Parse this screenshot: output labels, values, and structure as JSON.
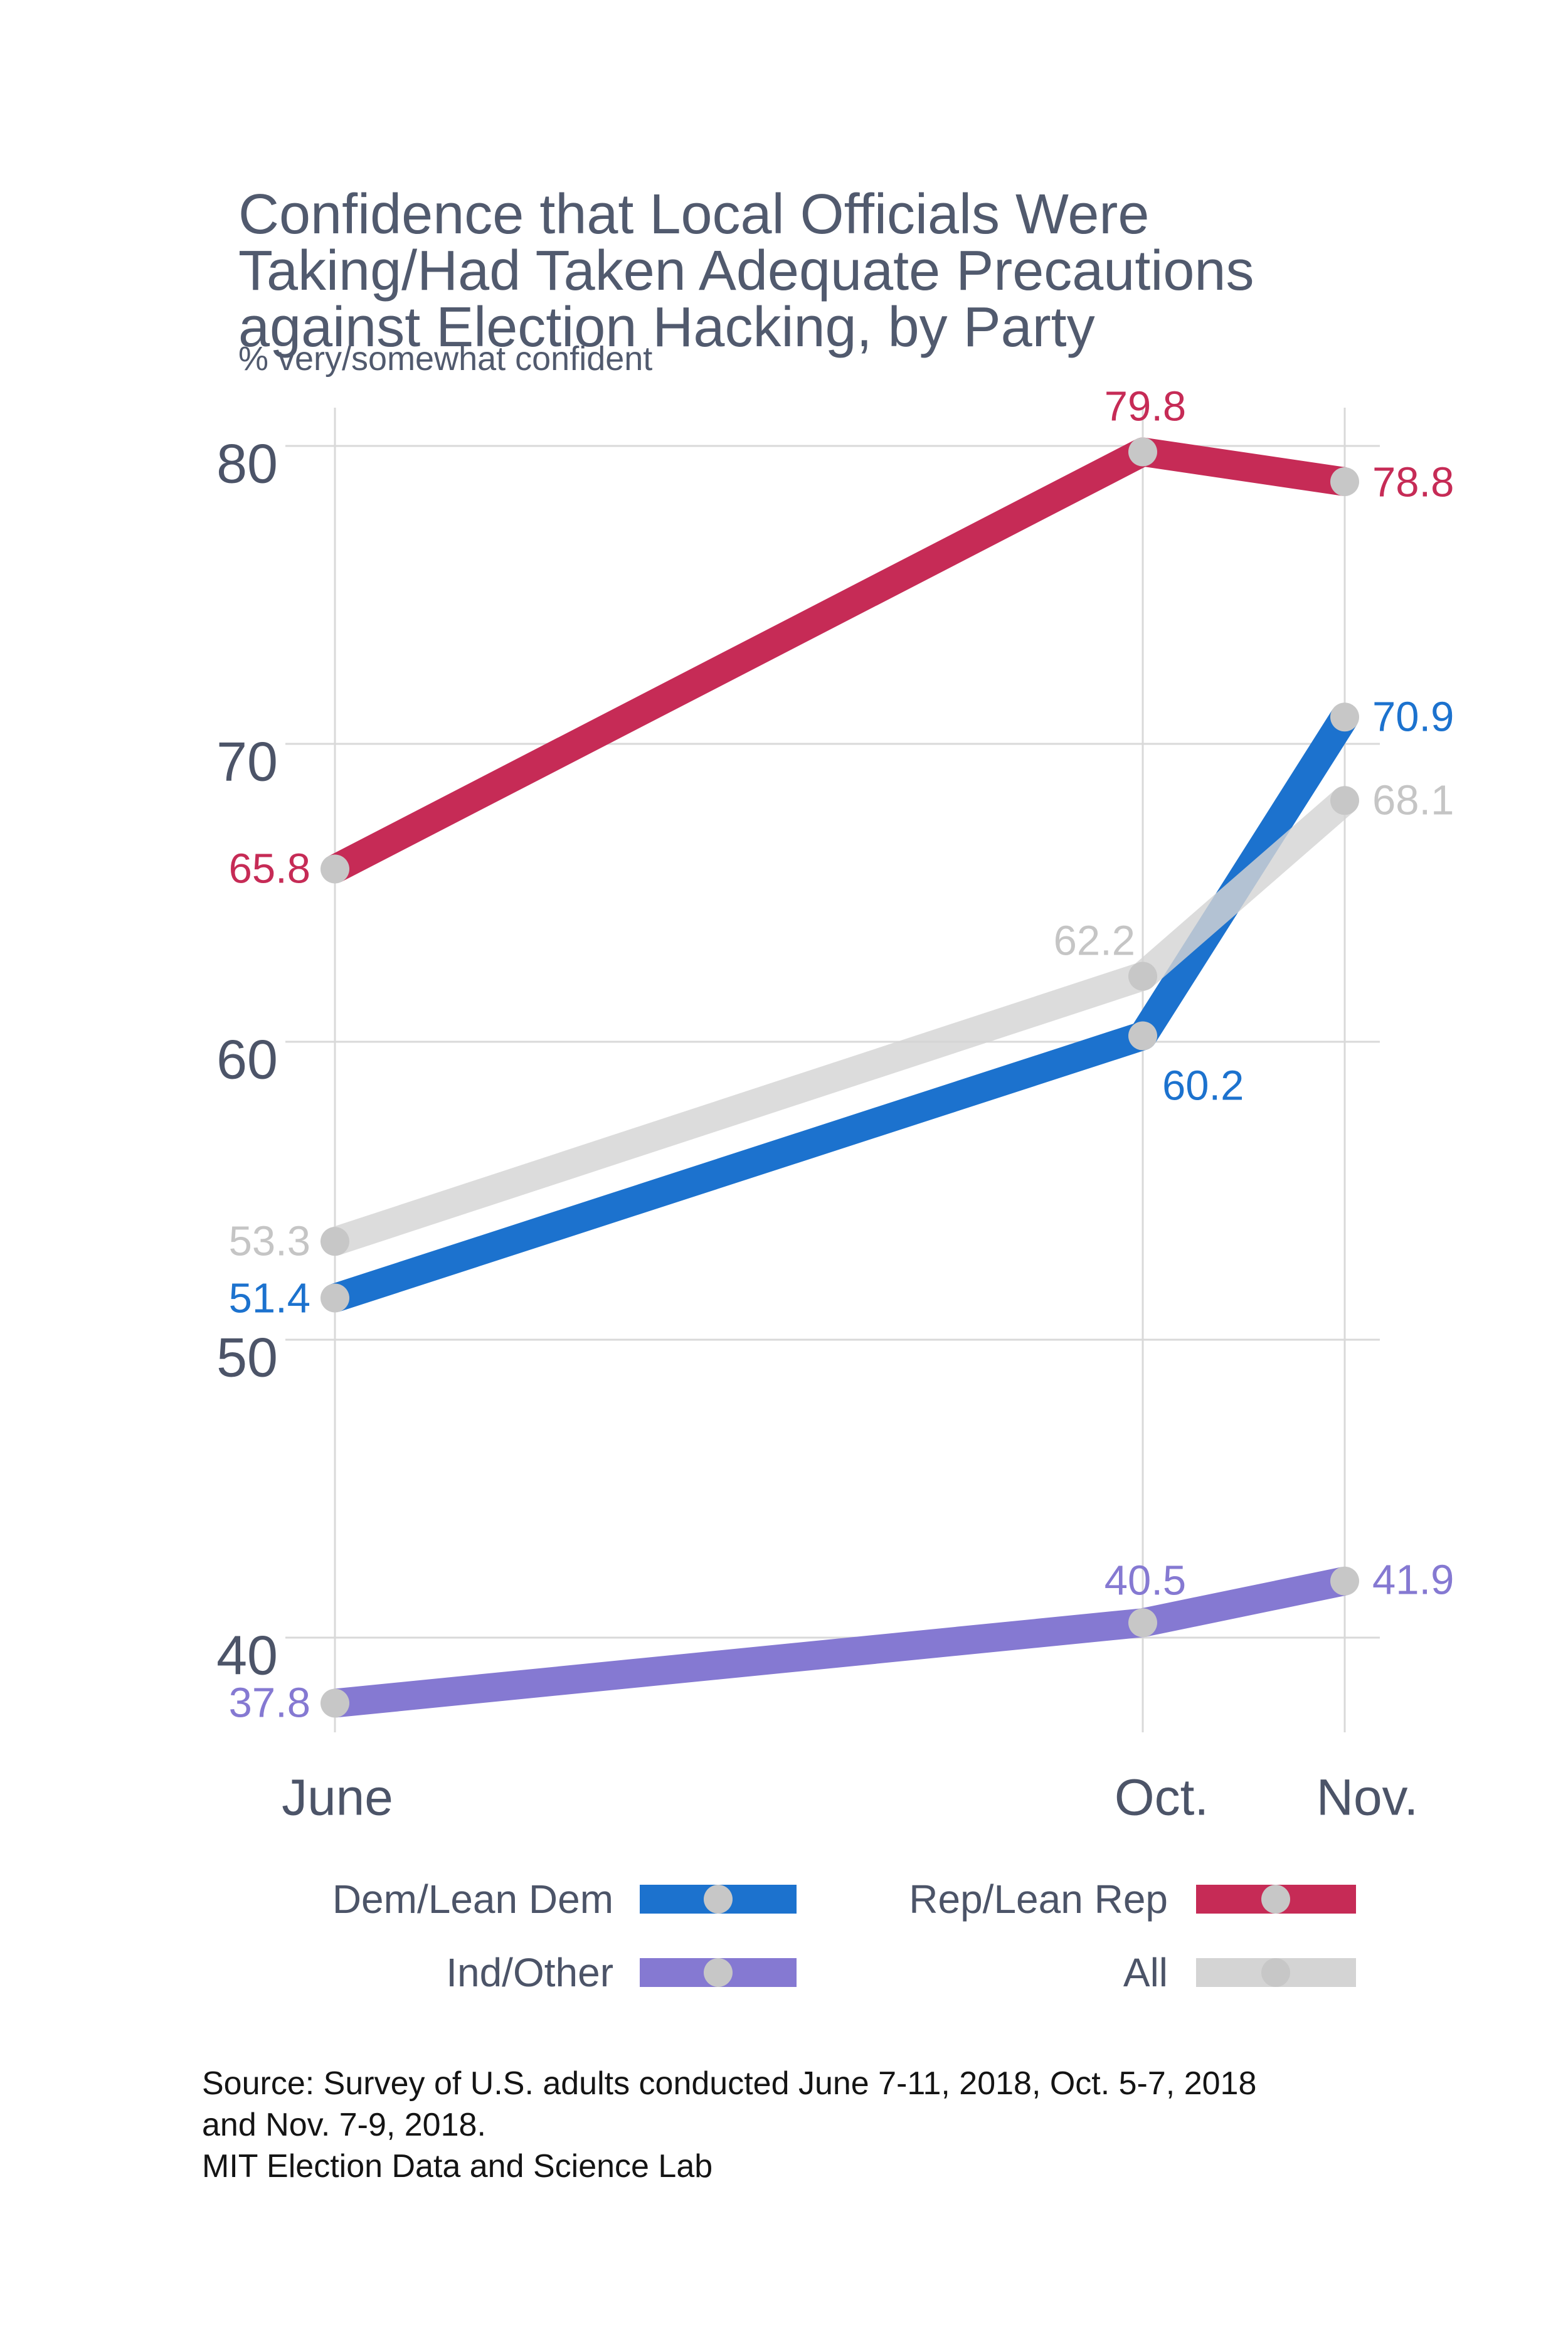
{
  "header": {
    "title_lines": [
      "Confidence that Local Officials Were",
      "Taking/Had Taken Adequate Precautions",
      "against Election Hacking, by Party"
    ],
    "subtitle": "% very/somewhat confident"
  },
  "axis": {
    "y_ticks": [
      "80",
      "70",
      "60",
      "50",
      "40"
    ],
    "x_ticks": [
      "June",
      "Oct.",
      "Nov."
    ]
  },
  "chart_data": {
    "type": "line",
    "title": "Confidence that Local Officials Were Taking/Had Taken Adequate Precautions against Election Hacking, by Party",
    "subtitle": "% very/somewhat confident",
    "x": [
      "June",
      "Oct.",
      "Nov."
    ],
    "x_months": [
      6,
      10,
      11
    ],
    "ylim": [
      36,
      82
    ],
    "y_ticks": [
      80,
      70,
      60,
      50,
      40
    ],
    "grid": true,
    "legend_position": "bottom",
    "marker_color": "#C7C7C7",
    "series": [
      {
        "id": "dem",
        "name": "Dem/Lean Dem",
        "color": "#1C72CE",
        "label_color": "#1C72CE",
        "values": [
          51.4,
          60.2,
          70.9
        ]
      },
      {
        "id": "rep",
        "name": "Rep/Lean Rep",
        "color": "#C62B56",
        "label_color": "#C62B56",
        "values": [
          65.8,
          79.8,
          78.8
        ]
      },
      {
        "id": "ind",
        "name": "Ind/Other",
        "color": "#8579D2",
        "label_color": "#8579D2",
        "values": [
          37.8,
          40.5,
          41.9
        ]
      },
      {
        "id": "all",
        "name": "All",
        "color": "#D4D4D4",
        "label_color": "#C5C5C5",
        "values": [
          53.3,
          62.2,
          68.1
        ]
      }
    ]
  },
  "source": {
    "lines": [
      "Source: Survey of U.S. adults conducted June 7-11, 2018, Oct. 5-7, 2018",
      "and Nov. 7-9, 2018.",
      "MIT Election Data and Science Lab"
    ]
  },
  "colors": {
    "title": "#515A6E",
    "text": "#4C5468",
    "gridline": "#D9D9D9",
    "source_text": "#141414",
    "background": "#FFFFFF"
  }
}
